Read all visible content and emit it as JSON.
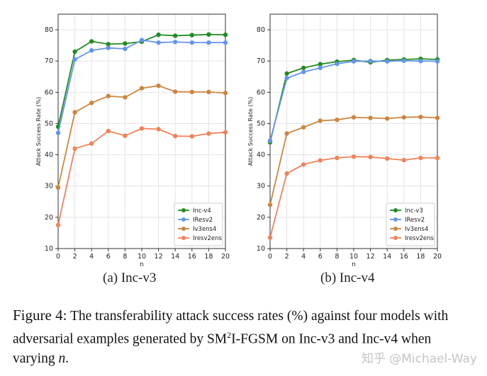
{
  "chart_data": [
    {
      "type": "line",
      "title": "",
      "subcaption": "(a) Inc-v3",
      "xlabel": "n",
      "ylabel": "Attack Success Rate (%)",
      "xlim": [
        0,
        20
      ],
      "ylim": [
        10,
        85
      ],
      "xticks": [
        0,
        2,
        4,
        6,
        8,
        10,
        12,
        14,
        16,
        18,
        20
      ],
      "yticks": [
        10,
        20,
        30,
        40,
        50,
        60,
        70,
        80
      ],
      "grid": true,
      "legend_position": "bottom-right",
      "x": [
        0,
        2,
        4,
        6,
        8,
        10,
        12,
        14,
        16,
        18,
        20
      ],
      "series": [
        {
          "name": "Inc-v4",
          "color": "#228b22",
          "values": [
            49.0,
            73.0,
            76.3,
            75.4,
            75.6,
            76.2,
            78.4,
            78.1,
            78.3,
            78.5,
            78.4
          ]
        },
        {
          "name": "IResv2",
          "color": "#6495ed",
          "values": [
            47.0,
            70.5,
            73.4,
            74.2,
            73.9,
            76.7,
            75.9,
            76.1,
            75.9,
            75.9,
            75.9
          ]
        },
        {
          "name": "Iv3ens4",
          "color": "#cd853f",
          "values": [
            29.5,
            53.6,
            56.6,
            58.8,
            58.4,
            61.3,
            62.1,
            60.2,
            60.1,
            60.1,
            59.8
          ]
        },
        {
          "name": "Iresv2ens",
          "color": "#f0825a",
          "values": [
            17.5,
            42.0,
            43.6,
            47.6,
            46.1,
            48.4,
            48.2,
            46.0,
            45.9,
            46.8,
            47.2
          ]
        }
      ]
    },
    {
      "type": "line",
      "title": "",
      "subcaption": "(b) Inc-v4",
      "xlabel": "n",
      "ylabel": "Attack Success Rate (%)",
      "xlim": [
        0,
        20
      ],
      "ylim": [
        10,
        85
      ],
      "xticks": [
        0,
        2,
        4,
        6,
        8,
        10,
        12,
        14,
        16,
        18,
        20
      ],
      "yticks": [
        10,
        20,
        30,
        40,
        50,
        60,
        70,
        80
      ],
      "grid": true,
      "legend_position": "bottom-right",
      "x": [
        0,
        2,
        4,
        6,
        8,
        10,
        12,
        14,
        16,
        18,
        20
      ],
      "series": [
        {
          "name": "Inc-v3",
          "color": "#228b22",
          "values": [
            44.0,
            66.0,
            67.8,
            69.0,
            69.8,
            70.3,
            69.6,
            70.3,
            70.5,
            70.7,
            70.5
          ]
        },
        {
          "name": "IResv2",
          "color": "#6495ed",
          "values": [
            44.5,
            64.5,
            66.5,
            67.8,
            69.1,
            69.9,
            70.0,
            69.9,
            70.1,
            70.0,
            69.9
          ]
        },
        {
          "name": "Iv3ens4",
          "color": "#cd853f",
          "values": [
            24.0,
            46.8,
            48.8,
            50.9,
            51.2,
            52.0,
            51.8,
            51.6,
            52.0,
            52.1,
            51.8
          ]
        },
        {
          "name": "Iresv2ens",
          "color": "#f0825a",
          "values": [
            13.5,
            34.0,
            36.9,
            38.2,
            39.0,
            39.4,
            39.3,
            38.8,
            38.3,
            39.0,
            39.0
          ]
        }
      ]
    }
  ],
  "caption": {
    "label": "Figure 4:",
    "text_part1": "The transferability attack success rates (%) against four models with adversarial examples generated by SM",
    "superscript": "2",
    "text_part2": "I-FGSM on Inc-v3 and Inc-v4 when varying",
    "variable": "n",
    "end": "."
  },
  "watermark": "知乎 @Michael-Way"
}
